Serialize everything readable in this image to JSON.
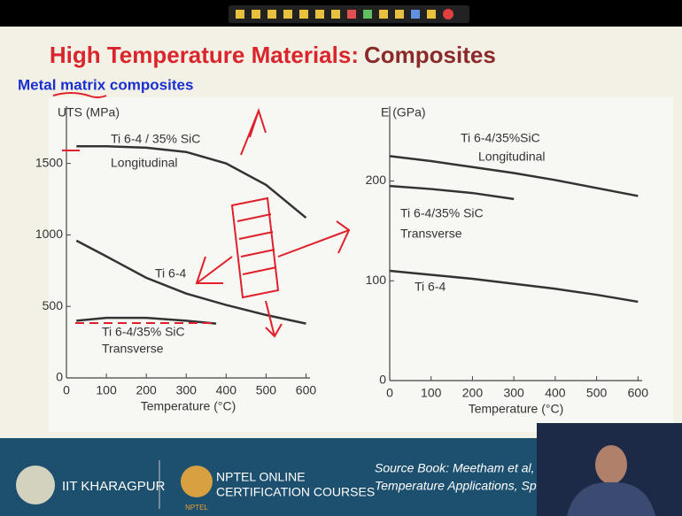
{
  "slide": {
    "title_main": "High Temperature Materials:",
    "title_accent": "Composites",
    "subtitle": "Metal matrix composites",
    "footer": {
      "institute": "IIT KHARAGPUR",
      "nptel_line1": "NPTEL ONLINE",
      "nptel_line2": "CERTIFICATION COURSES",
      "nptel_logo": "NPTEL",
      "source_line1": "Source Book: Meetham et al, Ma",
      "source_line2": "Temperature Applications, Sprin"
    }
  },
  "chart_data": [
    {
      "type": "line",
      "y_label": "UTS (MPa)",
      "x_label": "Temperature (°C)",
      "xlim": [
        0,
        610
      ],
      "xticks": [
        0,
        100,
        200,
        300,
        400,
        500,
        600
      ],
      "ylim": [
        0,
        1900
      ],
      "yticks": [
        0,
        500,
        1000,
        1500
      ],
      "series": [
        {
          "name": "Ti 6-4 / 35% SiC",
          "annotation": "Longitudinal",
          "color": "#333333",
          "x": [
            25,
            100,
            200,
            300,
            400,
            500,
            600
          ],
          "values": [
            1620,
            1620,
            1610,
            1580,
            1500,
            1350,
            1120
          ]
        },
        {
          "name": "Ti 6-4",
          "color": "#333333",
          "x": [
            25,
            100,
            200,
            300,
            400,
            500,
            600
          ],
          "values": [
            960,
            850,
            700,
            590,
            510,
            440,
            380
          ]
        },
        {
          "name": "Ti 6-4/35% SiC",
          "annotation": "Transverse",
          "color": "#333333",
          "x": [
            25,
            100,
            200,
            300,
            375
          ],
          "values": [
            400,
            420,
            420,
            400,
            380
          ]
        }
      ]
    },
    {
      "type": "line",
      "y_label": "E (GPa)",
      "x_label": "Temperature (°C)",
      "xlim": [
        0,
        610
      ],
      "xticks": [
        0,
        100,
        200,
        300,
        400,
        500,
        600
      ],
      "ylim": [
        0,
        275
      ],
      "yticks": [
        0,
        100,
        200
      ],
      "series": [
        {
          "name": "Ti 6-4/35%SiC",
          "annotation": "Longitudinal",
          "color": "#333333",
          "x": [
            0,
            100,
            200,
            300,
            400,
            500,
            600
          ],
          "values": [
            225,
            220,
            214,
            208,
            201,
            193,
            185
          ]
        },
        {
          "name": "Ti 6-4/35% SiC",
          "annotation": "Transverse",
          "color": "#333333",
          "x": [
            0,
            100,
            200,
            300
          ],
          "values": [
            195,
            192,
            188,
            182
          ]
        },
        {
          "name": "Ti 6-4",
          "color": "#333333",
          "x": [
            0,
            100,
            200,
            300,
            400,
            500,
            600
          ],
          "values": [
            110,
            106,
            102,
            97,
            92,
            86,
            79
          ]
        }
      ]
    }
  ]
}
